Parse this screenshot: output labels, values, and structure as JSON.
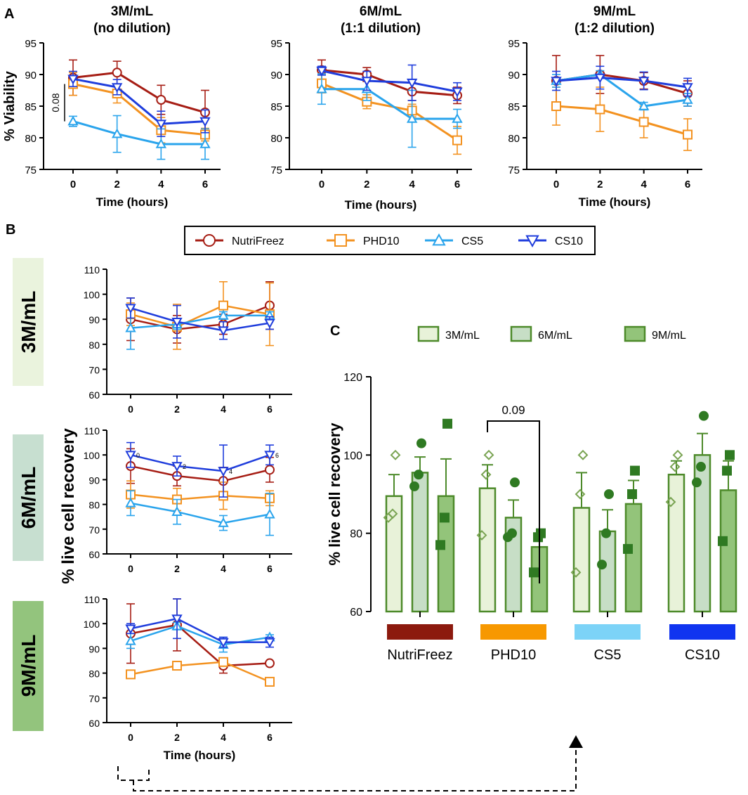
{
  "colors": {
    "NutriFreez": "#a61d14",
    "PHD10": "#f39220",
    "CS5": "#2aa4ec",
    "CS10": "#1f3ddc",
    "fill_NutriFreez": "#c87b6c",
    "fill_PHD10": "#e8a85a",
    "fill_CS5": "#6db7e8",
    "fill_CS10": "#7a6bb5",
    "bar_3": "#e8f2d9",
    "bar_6": "#c7dec6",
    "bar_9": "#93c47a",
    "bar_stroke": "#4d8a2a",
    "marker_3": "#79a352",
    "marker_dark": "#2f7a22",
    "cat_NutriFreez": "#8c1a0e",
    "cat_PHD10": "#f79800",
    "cat_CS5": "#7cd3f7",
    "cat_CS10": "#1034f0",
    "tag_3": "#eaf3dd",
    "tag_6": "#c7dfd0",
    "tag_9": "#93c47d"
  },
  "panel_labels": {
    "a": "A",
    "b": "B",
    "c": "C"
  },
  "legend": {
    "items": [
      {
        "key": "NutriFreez",
        "label": "NutriFreez",
        "marker": "circle"
      },
      {
        "key": "PHD10",
        "label": "PHD10",
        "marker": "square"
      },
      {
        "key": "CS5",
        "label": "CS5",
        "marker": "triangle-up"
      },
      {
        "key": "CS10",
        "label": "CS10",
        "marker": "triangle-down"
      }
    ]
  },
  "chart_data": [
    {
      "id": "A1",
      "type": "line",
      "title": [
        "3M/mL",
        "(no dilution)"
      ],
      "xlabel": "Time (hours)",
      "ylabel": "% Viability",
      "x": [
        0,
        2,
        4,
        6
      ],
      "ylim": [
        75,
        95
      ],
      "yticks": [
        75,
        80,
        85,
        90,
        95
      ],
      "annotation": "0.08",
      "series": [
        {
          "name": "NutriFreez",
          "values": [
            89.5,
            90.3,
            86.0,
            84.0
          ],
          "err": [
            2.8,
            1.8,
            2.3,
            3.5
          ]
        },
        {
          "name": "PHD10",
          "values": [
            88.5,
            87.0,
            81.2,
            80.5
          ],
          "err": [
            1.8,
            1.5,
            2.0,
            1.0
          ]
        },
        {
          "name": "CS5",
          "values": [
            82.6,
            80.6,
            79.0,
            79.0
          ],
          "err": [
            0.8,
            2.9,
            2.4,
            2.4
          ]
        },
        {
          "name": "CS10",
          "values": [
            89.3,
            88.0,
            82.2,
            82.6
          ],
          "err": [
            1.2,
            1.2,
            2.0,
            1.8
          ]
        }
      ]
    },
    {
      "id": "A2",
      "type": "line",
      "title": [
        "6M/mL",
        "(1:1 dilution)"
      ],
      "xlabel": "Time (hours)",
      "ylabel": "",
      "x": [
        0,
        2,
        4,
        6
      ],
      "ylim": [
        75,
        95
      ],
      "yticks": [
        75,
        80,
        85,
        90,
        95
      ],
      "series": [
        {
          "name": "NutriFreez",
          "values": [
            90.7,
            90.0,
            87.3,
            86.7
          ],
          "err": [
            1.6,
            1.1,
            1.4,
            1.3
          ]
        },
        {
          "name": "PHD10",
          "values": [
            88.6,
            85.7,
            84.3,
            79.6
          ],
          "err": [
            1.5,
            1.1,
            1.0,
            2.2
          ]
        },
        {
          "name": "CS5",
          "values": [
            87.7,
            87.7,
            83.0,
            83.0
          ],
          "err": [
            2.4,
            1.8,
            4.5,
            1.5
          ]
        },
        {
          "name": "CS10",
          "values": [
            90.6,
            89.0,
            88.7,
            87.3
          ],
          "err": [
            0.7,
            1.5,
            2.8,
            1.4
          ]
        }
      ]
    },
    {
      "id": "A3",
      "type": "line",
      "title": [
        "9M/mL",
        "(1:2 dilution)"
      ],
      "xlabel": "Time (hours)",
      "ylabel": "",
      "x": [
        0,
        2,
        4,
        6
      ],
      "ylim": [
        75,
        95
      ],
      "yticks": [
        75,
        80,
        85,
        90,
        95
      ],
      "series": [
        {
          "name": "NutriFreez",
          "values": [
            89.0,
            90.0,
            89.0,
            87.0
          ],
          "err": [
            4.0,
            3.0,
            1.3,
            2.0
          ]
        },
        {
          "name": "PHD10",
          "values": [
            85.0,
            84.5,
            82.5,
            80.5
          ],
          "err": [
            3.0,
            3.5,
            2.5,
            2.5
          ]
        },
        {
          "name": "CS5",
          "values": [
            89.0,
            90.0,
            85.0,
            86.0
          ],
          "err": [
            1.0,
            0.6,
            0.6,
            1.0
          ]
        },
        {
          "name": "CS10",
          "values": [
            89.0,
            89.5,
            89.0,
            88.0
          ],
          "err": [
            1.5,
            1.8,
            1.4,
            1.4
          ]
        }
      ]
    },
    {
      "id": "B1",
      "type": "area",
      "row_label": "3M/mL",
      "x": [
        0,
        2,
        4,
        6
      ],
      "ylim": [
        60,
        110
      ],
      "yticks": [
        60,
        70,
        80,
        90,
        100,
        110
      ],
      "series": [
        {
          "name": "NutriFreez",
          "values": [
            90.0,
            86.0,
            88.0,
            95.5
          ],
          "err": [
            8.5,
            5.5,
            4.0,
            9.5
          ]
        },
        {
          "name": "PHD10",
          "values": [
            92.0,
            87.0,
            95.5,
            92.0
          ],
          "err": [
            4.5,
            9.0,
            9.5,
            12.5
          ]
        },
        {
          "name": "CS5",
          "values": [
            86.5,
            88.0,
            91.5,
            91.5
          ],
          "err": [
            8.5,
            2.0,
            1.5,
            1.5
          ]
        },
        {
          "name": "CS10",
          "values": [
            94.5,
            89.0,
            85.5,
            88.5
          ],
          "err": [
            4.0,
            6.5,
            3.5,
            2.5
          ]
        }
      ]
    },
    {
      "id": "B2",
      "type": "area",
      "row_label": "6M/mL",
      "x": [
        0,
        2,
        4,
        6
      ],
      "ylim": [
        60,
        110
      ],
      "yticks": [
        60,
        70,
        80,
        90,
        100,
        110
      ],
      "point_labels": [
        "0",
        "2",
        "4",
        "6"
      ],
      "series": [
        {
          "name": "NutriFreez",
          "values": [
            95.5,
            91.5,
            89.5,
            94.0
          ],
          "err": [
            7.0,
            4.0,
            5.5,
            5.0
          ]
        },
        {
          "name": "PHD10",
          "values": [
            84.0,
            82.0,
            83.5,
            82.5
          ],
          "err": [
            5.5,
            4.5,
            5.5,
            3.0
          ]
        },
        {
          "name": "CS5",
          "values": [
            80.5,
            77.0,
            72.5,
            76.0
          ],
          "err": [
            5.0,
            5.0,
            3.0,
            8.5
          ]
        },
        {
          "name": "CS10",
          "values": [
            100.0,
            95.5,
            93.5,
            100.0
          ],
          "err": [
            5.0,
            4.0,
            10.5,
            4.0
          ]
        }
      ]
    },
    {
      "id": "B3",
      "type": "area",
      "row_label": "9M/mL",
      "xlabel": "Time (hours)",
      "x": [
        0,
        2,
        4,
        6
      ],
      "ylim": [
        60,
        110
      ],
      "yticks": [
        60,
        70,
        80,
        90,
        100,
        110
      ],
      "series": [
        {
          "name": "NutriFreez",
          "values": [
            96.0,
            99.5,
            83.0,
            84.0
          ],
          "err": [
            12.0,
            10.5,
            3.0,
            0.5
          ]
        },
        {
          "name": "PHD10",
          "values": [
            79.5,
            83.0,
            84.5,
            76.5
          ],
          "err": [
            1.0,
            1.0,
            1.0,
            1.0
          ]
        },
        {
          "name": "CS5",
          "values": [
            93.0,
            99.0,
            91.5,
            94.5
          ],
          "err": [
            3.0,
            1.5,
            3.0,
            1.0
          ]
        },
        {
          "name": "CS10",
          "values": [
            98.0,
            102.0,
            92.5,
            92.5
          ],
          "err": [
            2.0,
            8.0,
            2.0,
            2.0
          ]
        }
      ]
    },
    {
      "id": "C",
      "type": "bar",
      "ylabel": "% live cell recovery",
      "ylim": [
        60,
        120
      ],
      "yticks": [
        60,
        80,
        100,
        120
      ],
      "categories": [
        "NutriFreez",
        "PHD10",
        "CS5",
        "CS10"
      ],
      "legend": [
        "3M/mL",
        "6M/mL",
        "9M/mL"
      ],
      "annotation": "0.09",
      "series": [
        {
          "name": "3M/mL",
          "values": [
            89.5,
            91.5,
            86.5,
            95.0
          ],
          "err": [
            5.5,
            6.0,
            9.0,
            3.5
          ],
          "points": [
            [
              100,
              85,
              84
            ],
            [
              100,
              95,
              79.5
            ],
            [
              100,
              90,
              70
            ],
            [
              100,
              97,
              88
            ]
          ]
        },
        {
          "name": "6M/mL",
          "values": [
            95.5,
            84.0,
            80.5,
            100.0
          ],
          "err": [
            4.0,
            4.5,
            5.5,
            5.5
          ],
          "points": [
            [
              103,
              95,
              92
            ],
            [
              93,
              80,
              79
            ],
            [
              90,
              80,
              72
            ],
            [
              110,
              97,
              93
            ]
          ]
        },
        {
          "name": "9M/mL",
          "values": [
            89.5,
            76.5,
            87.5,
            91.0
          ],
          "err": [
            9.5,
            3.0,
            6.0,
            7.5
          ],
          "points": [
            [
              108,
              84,
              77
            ],
            [
              80,
              79,
              70
            ],
            [
              96,
              90,
              76
            ],
            [
              100,
              96,
              78
            ]
          ]
        }
      ]
    }
  ],
  "labels": {
    "ylabel_B": "% live cell recovery",
    "xlabel_B": "Time (hours)"
  }
}
